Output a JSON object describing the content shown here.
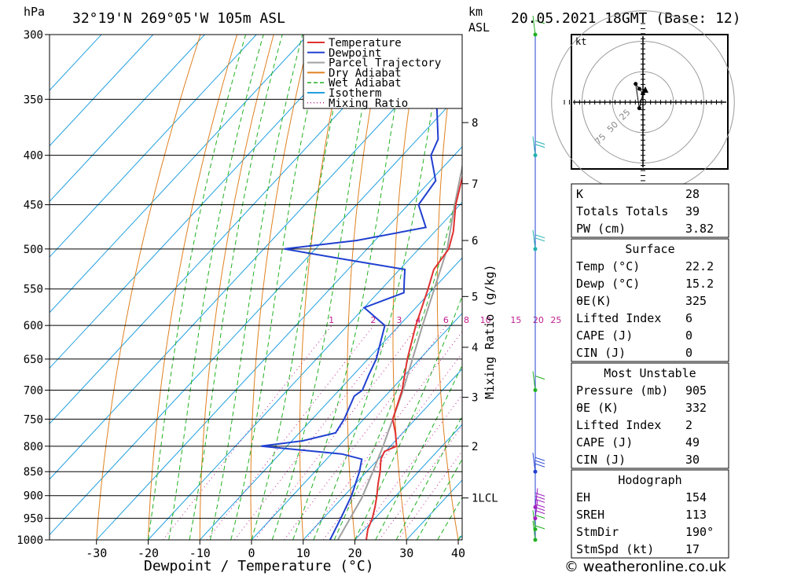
{
  "header": {
    "pressure_unit": "hPa",
    "location": "32°19'N  269°05'W  105m  ASL",
    "height_unit_km": "km",
    "height_unit_asl": "ASL",
    "datetime": "20.05.2021  18GMT  (Base: 12)"
  },
  "footer": {
    "x_axis_label": "Dewpoint / Temperature (°C)",
    "credit": "© weatheronline.co.uk"
  },
  "mixing_ratio_axis_label": "Mixing Ratio (g/kg)",
  "hodograph": {
    "unit": "kt",
    "ring_labels": [
      "25",
      "50",
      "75"
    ]
  },
  "legend": [
    {
      "label": "Temperature",
      "color": "#e03030",
      "style": "solid"
    },
    {
      "label": "Dewpoint",
      "color": "#2040d0",
      "style": "solid"
    },
    {
      "label": "Parcel Trajectory",
      "color": "#a0a0a0",
      "style": "solid"
    },
    {
      "label": "Dry Adiabat",
      "color": "#e08020",
      "style": "solid"
    },
    {
      "label": "Wet Adiabat",
      "color": "#20b020",
      "style": "dashed"
    },
    {
      "label": "Isotherm",
      "color": "#20a0e0",
      "style": "solid"
    },
    {
      "label": "Mixing Ratio",
      "color": "#c02090",
      "style": "dotted"
    }
  ],
  "indices": {
    "general": [
      {
        "label": "K",
        "value": "28"
      },
      {
        "label": "Totals Totals",
        "value": "39"
      },
      {
        "label": "PW (cm)",
        "value": "3.82"
      }
    ],
    "surface_title": "Surface",
    "surface": [
      {
        "label": "Temp (°C)",
        "value": "22.2"
      },
      {
        "label": "Dewp (°C)",
        "value": "15.2"
      },
      {
        "label": "θE(K)",
        "value": "325"
      },
      {
        "label": "Lifted Index",
        "value": "6"
      },
      {
        "label": "CAPE (J)",
        "value": "0"
      },
      {
        "label": "CIN (J)",
        "value": "0"
      }
    ],
    "mu_title": "Most Unstable",
    "most_unstable": [
      {
        "label": "Pressure (mb)",
        "value": "905"
      },
      {
        "label": "θE (K)",
        "value": "332"
      },
      {
        "label": "Lifted Index",
        "value": "2"
      },
      {
        "label": "CAPE (J)",
        "value": "49"
      },
      {
        "label": "CIN (J)",
        "value": "30"
      }
    ],
    "hodo_title": "Hodograph",
    "hodograph": [
      {
        "label": "EH",
        "value": "154"
      },
      {
        "label": "SREH",
        "value": "113"
      },
      {
        "label": "StmDir",
        "value": "190°"
      },
      {
        "label": "StmSpd (kt)",
        "value": "17"
      }
    ]
  },
  "chart_data": {
    "type": "line",
    "subtype": "skew-T log-P sounding",
    "x_label": "Dewpoint / Temperature (°C)",
    "x_ticks": [
      "-30",
      "-20",
      "-10",
      "0",
      "10",
      "20",
      "30",
      "40"
    ],
    "pressure_ticks": [
      "300",
      "350",
      "400",
      "450",
      "500",
      "550",
      "600",
      "650",
      "700",
      "750",
      "800",
      "850",
      "900",
      "950",
      "1000"
    ],
    "height_ticks_km": [
      {
        "km": "8",
        "p": 370
      },
      {
        "km": "7",
        "p": 428
      },
      {
        "km": "6",
        "p": 490
      },
      {
        "km": "5",
        "p": 560
      },
      {
        "km": "4",
        "p": 632
      },
      {
        "km": "3",
        "p": 712
      },
      {
        "km": "2",
        "p": 800
      },
      {
        "km": "1LCL",
        "p": 905
      }
    ],
    "mixing_ratio_labels": [
      "1",
      "2",
      "3",
      "4",
      "6",
      "8",
      "10",
      "15",
      "20",
      "25"
    ],
    "temperature": [
      {
        "p": 1000,
        "t": 22.2
      },
      {
        "p": 975,
        "t": 20.6
      },
      {
        "p": 950,
        "t": 19.5
      },
      {
        "p": 925,
        "t": 18.0
      },
      {
        "p": 900,
        "t": 16.3
      },
      {
        "p": 875,
        "t": 14.4
      },
      {
        "p": 850,
        "t": 12.6
      },
      {
        "p": 825,
        "t": 10.5
      },
      {
        "p": 810,
        "t": 9.8
      },
      {
        "p": 800,
        "t": 11.2
      },
      {
        "p": 775,
        "t": 8.6
      },
      {
        "p": 750,
        "t": 5.6
      },
      {
        "p": 700,
        "t": 2.2
      },
      {
        "p": 650,
        "t": -2.4
      },
      {
        "p": 600,
        "t": -6.8
      },
      {
        "p": 550,
        "t": -11.0
      },
      {
        "p": 525,
        "t": -13.4
      },
      {
        "p": 500,
        "t": -14.2
      },
      {
        "p": 480,
        "t": -16.4
      },
      {
        "p": 450,
        "t": -20.8
      },
      {
        "p": 400,
        "t": -27.4
      },
      {
        "p": 350,
        "t": -35.5
      },
      {
        "p": 320,
        "t": -41.5
      },
      {
        "p": 300,
        "t": -45.0
      }
    ],
    "dewpoint": [
      {
        "p": 1000,
        "t": 15.2
      },
      {
        "p": 950,
        "t": 13.4
      },
      {
        "p": 900,
        "t": 11.4
      },
      {
        "p": 850,
        "t": 8.6
      },
      {
        "p": 825,
        "t": 6.8
      },
      {
        "p": 815,
        "t": 2.0
      },
      {
        "p": 800,
        "t": -15.0
      },
      {
        "p": 790,
        "t": -8.0
      },
      {
        "p": 775,
        "t": -3.0
      },
      {
        "p": 750,
        "t": -3.8
      },
      {
        "p": 710,
        "t": -6.0
      },
      {
        "p": 700,
        "t": -5.5
      },
      {
        "p": 675,
        "t": -7.0
      },
      {
        "p": 650,
        "t": -8.4
      },
      {
        "p": 600,
        "t": -12.8
      },
      {
        "p": 575,
        "t": -20.0
      },
      {
        "p": 555,
        "t": -15.0
      },
      {
        "p": 540,
        "t": -17.0
      },
      {
        "p": 525,
        "t": -19.0
      },
      {
        "p": 512,
        "t": -33.0
      },
      {
        "p": 500,
        "t": -46.0
      },
      {
        "p": 490,
        "t": -33.5
      },
      {
        "p": 475,
        "t": -22.5
      },
      {
        "p": 450,
        "t": -28.0
      },
      {
        "p": 425,
        "t": -29.0
      },
      {
        "p": 400,
        "t": -34.5
      },
      {
        "p": 385,
        "t": -36.0
      },
      {
        "p": 350,
        "t": -43.5
      },
      {
        "p": 325,
        "t": -50.0
      },
      {
        "p": 300,
        "t": -64.0
      }
    ],
    "parcel": [
      {
        "p": 1000,
        "t": 16.7
      },
      {
        "p": 905,
        "t": 13.8
      },
      {
        "p": 850,
        "t": 11.2
      },
      {
        "p": 800,
        "t": 8.6
      },
      {
        "p": 700,
        "t": 2.4
      },
      {
        "p": 600,
        "t": -5.5
      },
      {
        "p": 500,
        "t": -14.5
      },
      {
        "p": 450,
        "t": -21.0
      },
      {
        "p": 400,
        "t": -28.0
      },
      {
        "p": 350,
        "t": -36.0
      },
      {
        "p": 300,
        "t": -46.5
      }
    ],
    "wind_barbs": [
      {
        "p": 1000,
        "dir": 210,
        "spd": 5,
        "color": "#20b020"
      },
      {
        "p": 975,
        "dir": 220,
        "spd": 10,
        "color": "#20b020"
      },
      {
        "p": 950,
        "dir": 180,
        "spd": 25,
        "color": "#a020c0"
      },
      {
        "p": 925,
        "dir": 170,
        "spd": 30,
        "color": "#a020c0"
      },
      {
        "p": 850,
        "dir": 190,
        "spd": 25,
        "color": "#2040d0"
      },
      {
        "p": 700,
        "dir": 200,
        "spd": 10,
        "color": "#20b020"
      },
      {
        "p": 500,
        "dir": 200,
        "spd": 15,
        "color": "#20b0b0"
      },
      {
        "p": 400,
        "dir": 230,
        "spd": 20,
        "color": "#20b0b0"
      },
      {
        "p": 300,
        "dir": 190,
        "spd": 10,
        "color": "#20b020"
      }
    ],
    "hodograph_points": [
      {
        "u": -3,
        "v": -5
      },
      {
        "u": 0,
        "v": 7
      },
      {
        "u": -3,
        "v": 11
      },
      {
        "u": -6,
        "v": 15
      }
    ]
  }
}
